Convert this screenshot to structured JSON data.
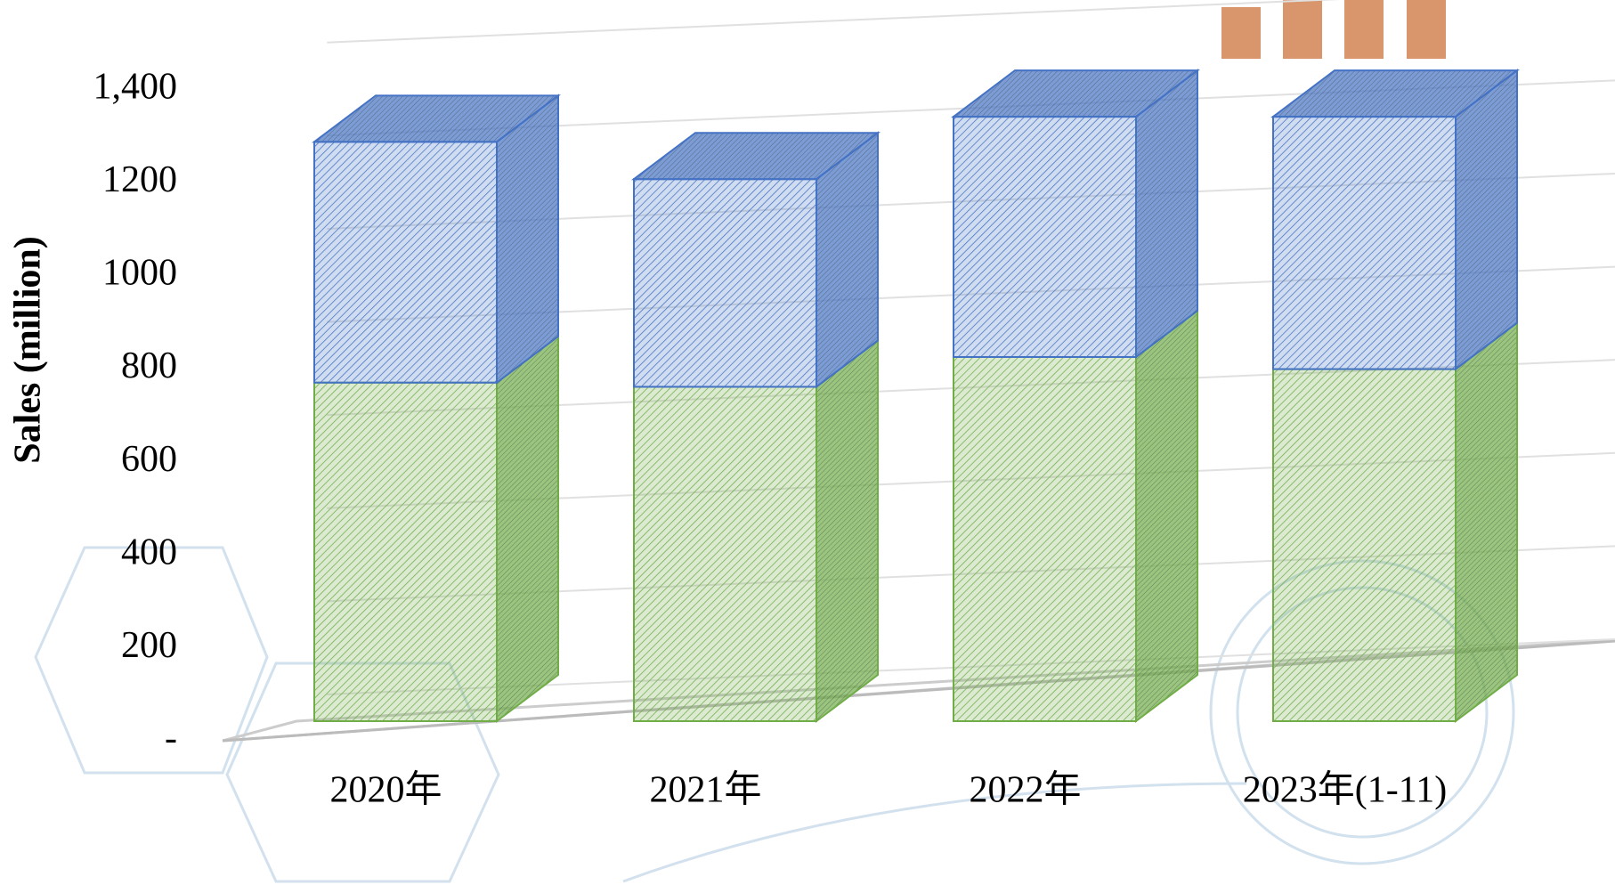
{
  "chart_data": {
    "type": "bar3d_stacked",
    "ylabel": "Sales (million)",
    "categories": [
      "2020年",
      "2021年",
      "2022年",
      "2023年(1-11)"
    ],
    "series": [
      {
        "color": "#70ad47",
        "values": [
          727,
          718,
          782,
          756
        ]
      },
      {
        "color": "#4472c4",
        "values": [
          517,
          446,
          516,
          542
        ]
      }
    ],
    "ylim": [
      0,
      1400
    ],
    "yticks": [
      {
        "value": 0,
        "label": "-"
      },
      200,
      400,
      600,
      800,
      1000,
      1200,
      {
        "value": 1400,
        "label": "1,400"
      }
    ],
    "grid": true
  }
}
